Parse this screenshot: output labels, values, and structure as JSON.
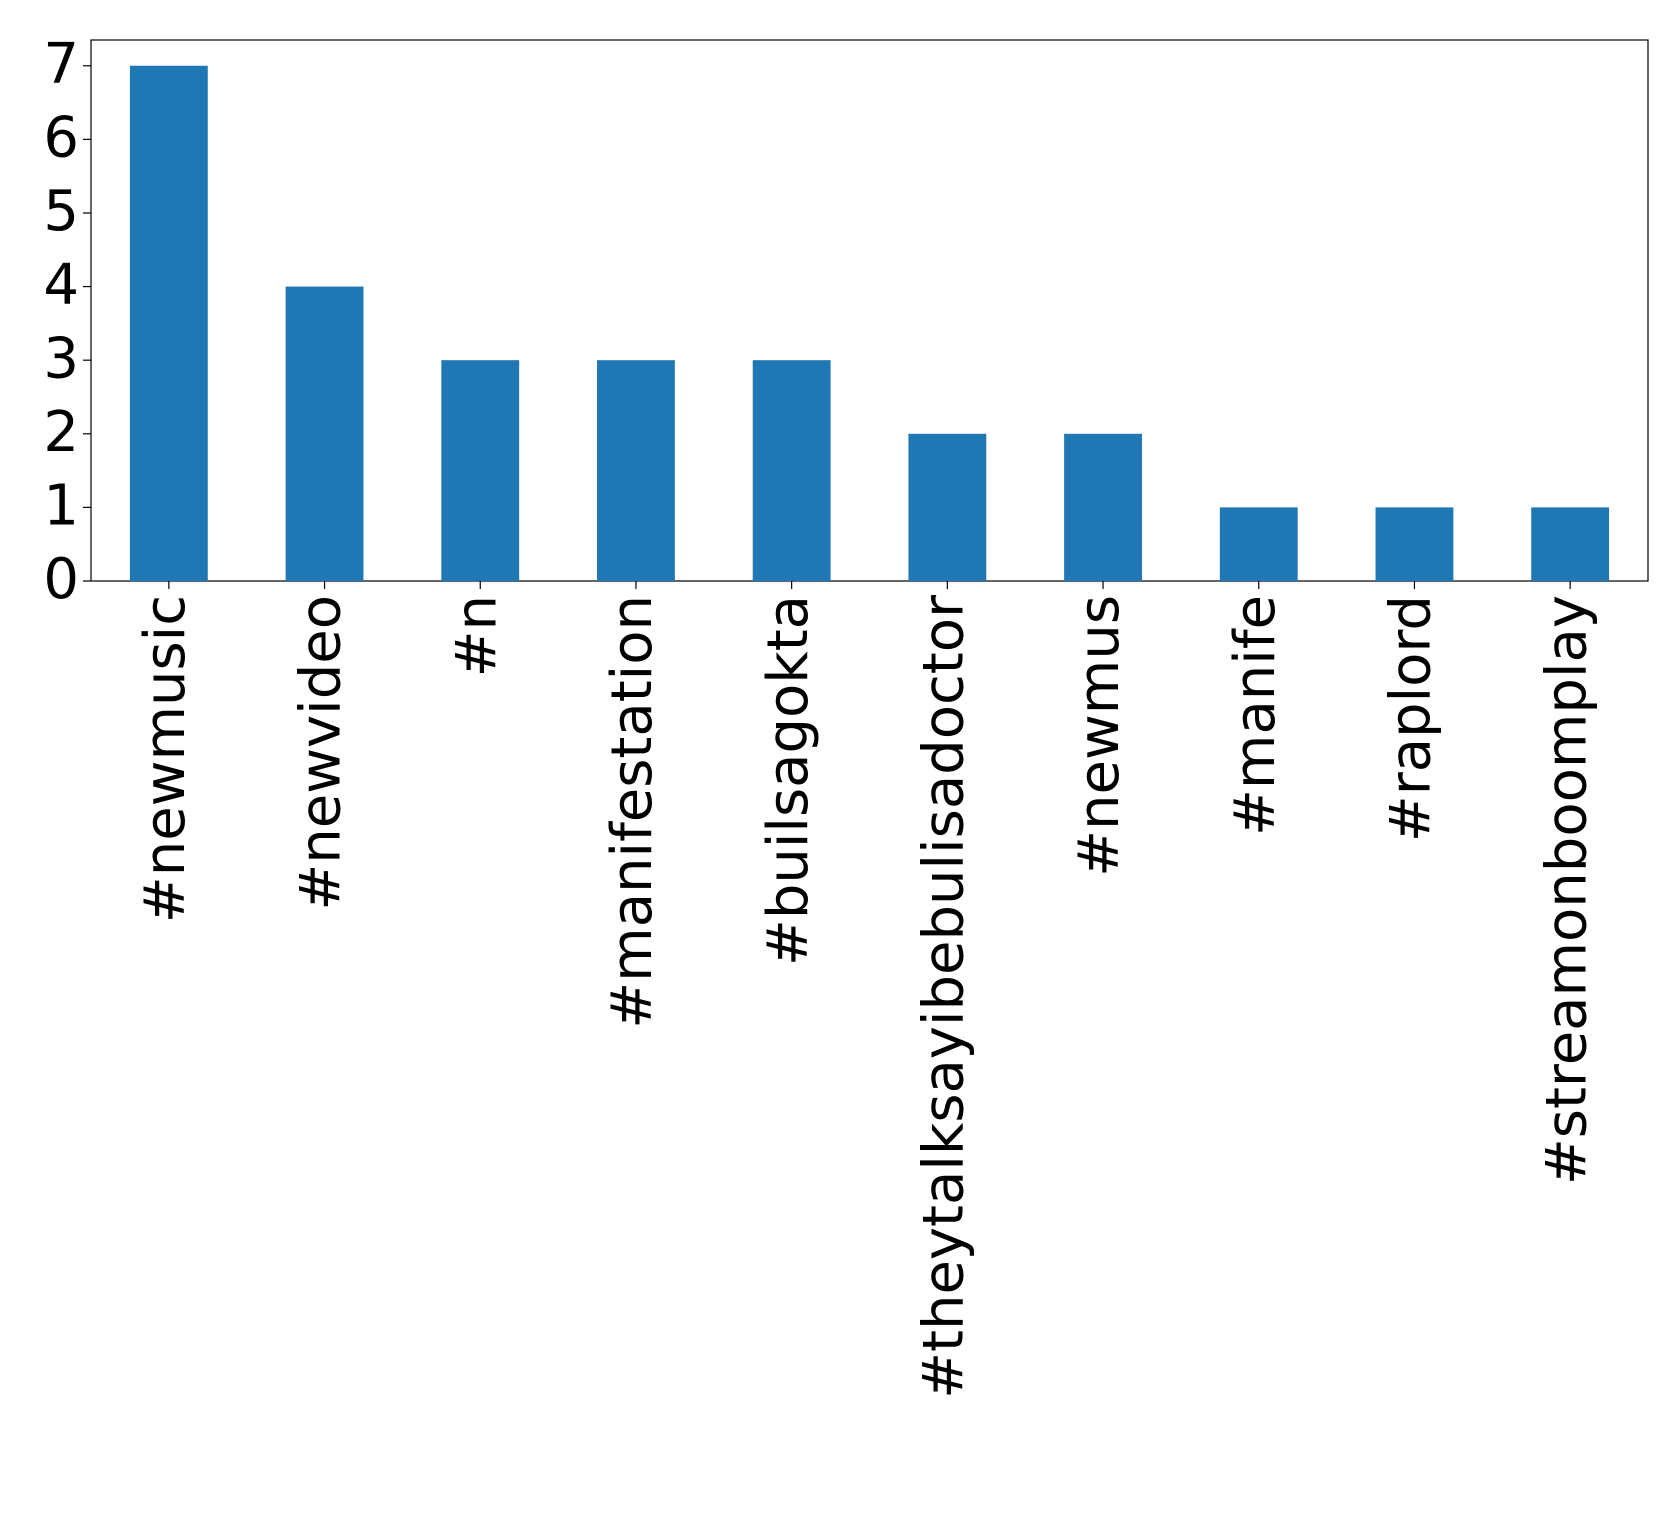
{
  "chart_data": {
    "type": "bar",
    "categories": [
      "#newmusic",
      "#newvideo",
      "#n",
      "#manifestation",
      "#builsagokta",
      "#theytalksayibebulisadoctor",
      "#newmus",
      "#manife",
      "#raplord",
      "#streamonboomplay"
    ],
    "values": [
      7,
      4,
      3,
      3,
      3,
      2,
      2,
      1,
      1,
      1
    ],
    "color": "#1f77b4",
    "ylim": [
      0,
      7.35
    ],
    "yticks": [
      0,
      1,
      2,
      3,
      4,
      5,
      6,
      7
    ],
    "grid": false
  }
}
